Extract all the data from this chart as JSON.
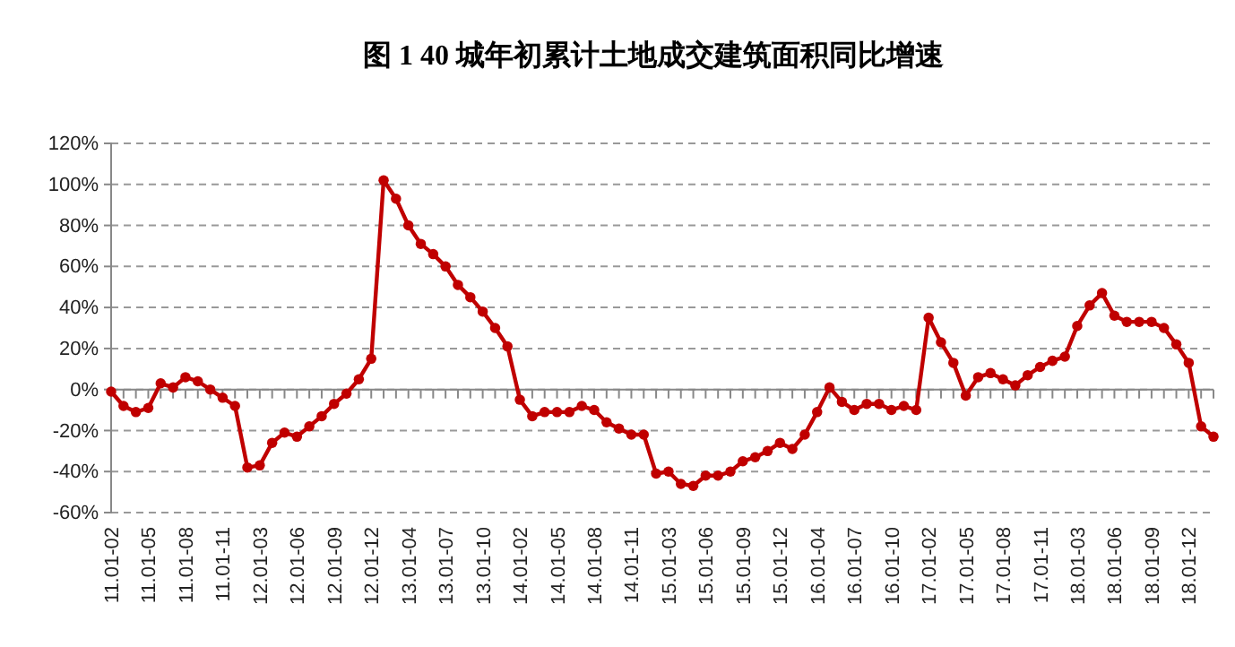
{
  "chart_data": {
    "type": "line",
    "title": "图 1   40 城年初累计土地成交建筑面积同比增速",
    "categories": [
      "11.01-02",
      null,
      null,
      "11.01-05",
      null,
      null,
      "11.01-08",
      null,
      null,
      "11.01-11",
      null,
      null,
      "12.01-03",
      null,
      null,
      "12.01-06",
      null,
      null,
      "12.01-09",
      null,
      null,
      "12.01-12",
      null,
      null,
      "13.01-04",
      null,
      null,
      "13.01-07",
      null,
      null,
      "13.01-10",
      null,
      null,
      "14.01-02",
      null,
      null,
      "14.01-05",
      null,
      null,
      "14.01-08",
      null,
      null,
      "14.01-11",
      null,
      null,
      "15.01-03",
      null,
      null,
      "15.01-06",
      null,
      null,
      "15.01-09",
      null,
      null,
      "15.01-12",
      null,
      null,
      "16.01-04",
      null,
      null,
      "16.01-07",
      null,
      null,
      "16.01-10",
      null,
      null,
      "17.01-02",
      null,
      null,
      "17.01-05",
      null,
      null,
      "17.01-08",
      null,
      null,
      "17.01-11",
      null,
      null,
      "18.01-03",
      null,
      null,
      "18.01-06",
      null,
      null,
      "18.01-09",
      null,
      null,
      "18.01-12",
      null,
      null
    ],
    "series": [
      {
        "color": "#c00000",
        "values": [
          -1,
          -8,
          -11,
          -9,
          3,
          1,
          6,
          4,
          0,
          -4,
          -8,
          -38,
          -37,
          -26,
          -21,
          -23,
          -18,
          -13,
          -7,
          -2,
          5,
          15,
          102,
          93,
          80,
          71,
          66,
          60,
          51,
          45,
          38,
          30,
          21,
          -5,
          -13,
          -11,
          -11,
          -11,
          -8,
          -10,
          -16,
          -19,
          -22,
          -22,
          -41,
          -40,
          -46,
          -47,
          -42,
          -42,
          -40,
          -35,
          -33,
          -30,
          -26,
          -29,
          -22,
          -11,
          1,
          -6,
          -10,
          -7,
          -7,
          -10,
          -8,
          -10,
          35,
          23,
          13,
          -3,
          6,
          8,
          5,
          2,
          7,
          11,
          14,
          16,
          31,
          41,
          47,
          36,
          33,
          33,
          33,
          30,
          22,
          13,
          -18,
          -23
        ]
      }
    ],
    "ylim": [
      -60,
      120
    ],
    "yticks": [
      {
        "value": -60,
        "label": "-60%"
      },
      {
        "value": -40,
        "label": "-40%"
      },
      {
        "value": -20,
        "label": "-20%"
      },
      {
        "value": 0,
        "label": "0%"
      },
      {
        "value": 20,
        "label": "20%"
      },
      {
        "value": 40,
        "label": "40%"
      },
      {
        "value": 60,
        "label": "60%"
      },
      {
        "value": 80,
        "label": "80%"
      },
      {
        "value": 100,
        "label": "100%"
      },
      {
        "value": 120,
        "label": "120%"
      }
    ],
    "grid": "y",
    "marker": "circle",
    "line_style": "solid"
  }
}
